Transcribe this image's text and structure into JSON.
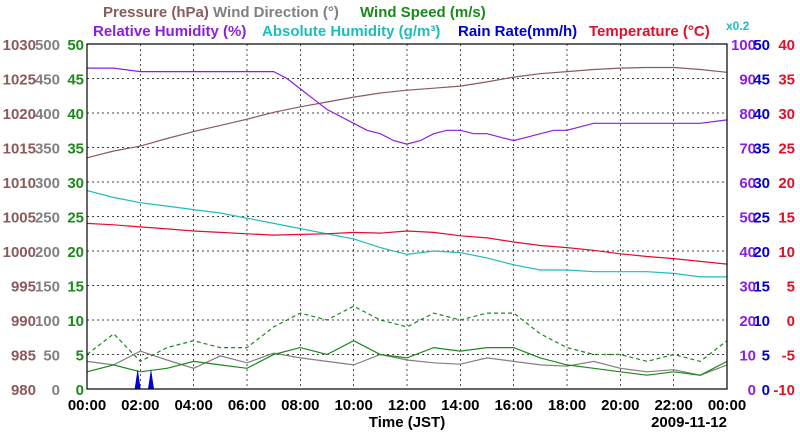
{
  "chart_data": {
    "type": "line",
    "date_label": "2009-11-12",
    "xlabel": "Time (JST)",
    "x_ticks": [
      "00:00",
      "02:00",
      "04:00",
      "06:00",
      "08:00",
      "10:00",
      "12:00",
      "14:00",
      "16:00",
      "18:00",
      "20:00",
      "22:00",
      "00:00"
    ],
    "legend": {
      "row1": [
        {
          "key": "pressure",
          "text": "Pressure (hPa)",
          "color": "#8b5a5a"
        },
        {
          "key": "wind_dir",
          "text": "Wind Direction (°)",
          "color": "#808080"
        },
        {
          "key": "wind_speed",
          "text": "Wind Speed (m/s)",
          "color": "#1a8a1a"
        }
      ],
      "row2": [
        {
          "key": "rh",
          "text": "Relative Humidity (%)",
          "color": "#8b1fe0"
        },
        {
          "key": "ah",
          "text": "Absolute Humidity (g/m³)",
          "color": "#1fbcbc"
        },
        {
          "key": "rain",
          "text": "Rain Rate(mm/h)",
          "color": "#0000d0"
        },
        {
          "key": "temp",
          "text": "Temperature (°C)",
          "color": "#e0102a"
        }
      ],
      "rain_multiplier": "x0.2"
    },
    "axes": {
      "pressure": {
        "color": "#8b5a5a",
        "ticks": [
          "1030",
          "1025",
          "1020",
          "1015",
          "1010",
          "1005",
          "1000",
          "995",
          "990",
          "985",
          "980"
        ],
        "range": [
          980,
          1030
        ]
      },
      "wind_dir": {
        "color": "#808080",
        "ticks": [
          "500",
          "450",
          "400",
          "350",
          "300",
          "250",
          "200",
          "150",
          "100",
          "50",
          "0"
        ],
        "range": [
          0,
          500
        ]
      },
      "wind_speed": {
        "color": "#1a8a1a",
        "ticks": [
          "50",
          "45",
          "40",
          "35",
          "30",
          "25",
          "20",
          "15",
          "10",
          "5",
          "0"
        ],
        "range": [
          0,
          50
        ]
      },
      "rh": {
        "color": "#8b1fe0",
        "ticks": [
          "100",
          "90",
          "80",
          "70",
          "60",
          "50",
          "40",
          "30",
          "20",
          "10",
          "0"
        ],
        "range": [
          0,
          100
        ]
      },
      "rain": {
        "color": "#0000d0",
        "ticks": [
          "50",
          "45",
          "40",
          "35",
          "30",
          "25",
          "20",
          "15",
          "10",
          "5",
          "0"
        ],
        "range": [
          0,
          50
        ]
      },
      "temp": {
        "color": "#e0102a",
        "ticks": [
          "40",
          "35",
          "30",
          "25",
          "20",
          "15",
          "10",
          "5",
          "0",
          "-5",
          "-10"
        ],
        "range": [
          -10,
          40
        ]
      }
    },
    "x_range_hours": [
      0,
      24
    ],
    "grid": true,
    "series": [
      {
        "name": "Pressure (hPa)",
        "axis": "pressure",
        "color": "#8b5a5a",
        "x": [
          0,
          1,
          2,
          3,
          4,
          5,
          6,
          7,
          8,
          9,
          10,
          11,
          12,
          13,
          14,
          15,
          16,
          17,
          18,
          19,
          20,
          21,
          22,
          23,
          24
        ],
        "y": [
          1013.5,
          1014.5,
          1015.2,
          1016.3,
          1017.3,
          1018.2,
          1019.1,
          1020.1,
          1020.9,
          1021.6,
          1022.3,
          1022.9,
          1023.3,
          1023.6,
          1023.9,
          1024.5,
          1025.2,
          1025.7,
          1026.0,
          1026.3,
          1026.5,
          1026.6,
          1026.6,
          1026.3,
          1025.9
        ]
      },
      {
        "name": "Relative Humidity (%)",
        "axis": "rh",
        "color": "#8b1fe0",
        "x": [
          0,
          1,
          2,
          3,
          4,
          5,
          6,
          7,
          7.5,
          8,
          8.5,
          9,
          9.5,
          10,
          10.5,
          11,
          11.5,
          12,
          12.5,
          13,
          13.5,
          14,
          14.5,
          15,
          15.5,
          16,
          16.5,
          17,
          17.5,
          18,
          18.5,
          19,
          19.5,
          20,
          20.5,
          21,
          22,
          23,
          24
        ],
        "y": [
          93,
          93,
          92,
          92,
          92,
          92,
          92,
          92,
          90,
          87,
          84,
          81,
          79,
          77,
          75,
          74,
          72,
          71,
          72,
          74,
          75,
          75,
          74,
          74,
          73,
          72,
          73,
          74,
          75,
          75,
          76,
          77,
          77,
          77,
          77,
          77,
          77,
          77,
          78
        ]
      },
      {
        "name": "Absolute Humidity (g/m³)",
        "axis": "ah",
        "color": "#1fbcbc",
        "y_scale_range": [
          0,
          20
        ],
        "x": [
          0,
          1,
          2,
          3,
          4,
          5,
          6,
          7,
          8,
          9,
          10,
          11,
          12,
          13,
          14,
          15,
          16,
          17,
          18,
          19,
          20,
          21,
          22,
          23,
          24
        ],
        "y": [
          11.5,
          11.1,
          10.8,
          10.6,
          10.4,
          10.2,
          9.9,
          9.6,
          9.3,
          9.0,
          8.7,
          8.2,
          7.8,
          8.0,
          7.9,
          7.6,
          7.2,
          6.9,
          6.9,
          6.8,
          6.8,
          6.8,
          6.7,
          6.5,
          6.5
        ]
      },
      {
        "name": "Temperature (°C)",
        "axis": "temp",
        "color": "#e0102a",
        "x": [
          0,
          1,
          2,
          3,
          4,
          5,
          6,
          7,
          8,
          9,
          10,
          11,
          12,
          13,
          14,
          15,
          16,
          17,
          18,
          19,
          20,
          21,
          22,
          23,
          24
        ],
        "y": [
          14.0,
          13.8,
          13.5,
          13.2,
          12.9,
          12.7,
          12.5,
          12.3,
          12.4,
          12.5,
          12.7,
          12.6,
          12.9,
          12.7,
          12.2,
          11.9,
          11.3,
          10.8,
          10.5,
          10.1,
          9.6,
          9.2,
          8.9,
          8.5,
          8.1
        ]
      },
      {
        "name": "Wind Direction (°)",
        "axis": "wind_dir",
        "color": "#808080",
        "x": [
          0,
          1,
          2,
          3,
          4,
          5,
          6,
          7,
          8,
          9,
          10,
          11,
          12,
          13,
          14,
          15,
          16,
          17,
          18,
          19,
          20,
          21,
          22,
          23,
          24
        ],
        "y": [
          40,
          35,
          55,
          42,
          30,
          48,
          38,
          52,
          45,
          40,
          35,
          50,
          42,
          38,
          36,
          45,
          40,
          35,
          33,
          40,
          30,
          25,
          28,
          20,
          35
        ]
      },
      {
        "name": "Wind Speed (m/s) mean",
        "axis": "wind_speed",
        "color": "#1a8a1a",
        "x": [
          0,
          1,
          2,
          3,
          4,
          5,
          6,
          7,
          8,
          9,
          10,
          11,
          12,
          13,
          14,
          15,
          16,
          17,
          18,
          19,
          20,
          21,
          22,
          23,
          24
        ],
        "y": [
          2.5,
          3.5,
          2.5,
          3.0,
          4.0,
          3.5,
          3.0,
          5.0,
          6.0,
          5.0,
          7.0,
          5.0,
          4.5,
          6.0,
          5.5,
          6.0,
          6.0,
          4.5,
          3.5,
          3.0,
          2.5,
          2.0,
          2.5,
          2.0,
          4.0
        ]
      },
      {
        "name": "Wind Speed (m/s) gust",
        "axis": "wind_speed",
        "color": "#1a8a1a",
        "dashed": true,
        "x": [
          0,
          1,
          2,
          3,
          4,
          5,
          6,
          7,
          8,
          9,
          10,
          11,
          12,
          13,
          14,
          15,
          16,
          17,
          18,
          19,
          20,
          21,
          22,
          23,
          24
        ],
        "y": [
          5,
          8,
          4,
          6,
          7,
          6,
          6,
          9,
          11,
          10,
          12,
          10,
          9,
          11,
          10,
          11,
          11,
          8,
          6,
          5,
          5,
          4,
          5,
          4,
          7
        ]
      },
      {
        "name": "Rain Rate(mm/h)",
        "axis": "rain",
        "color": "#0000d0",
        "x": [
          1.9,
          2.4
        ],
        "y": [
          3,
          3
        ]
      }
    ]
  }
}
